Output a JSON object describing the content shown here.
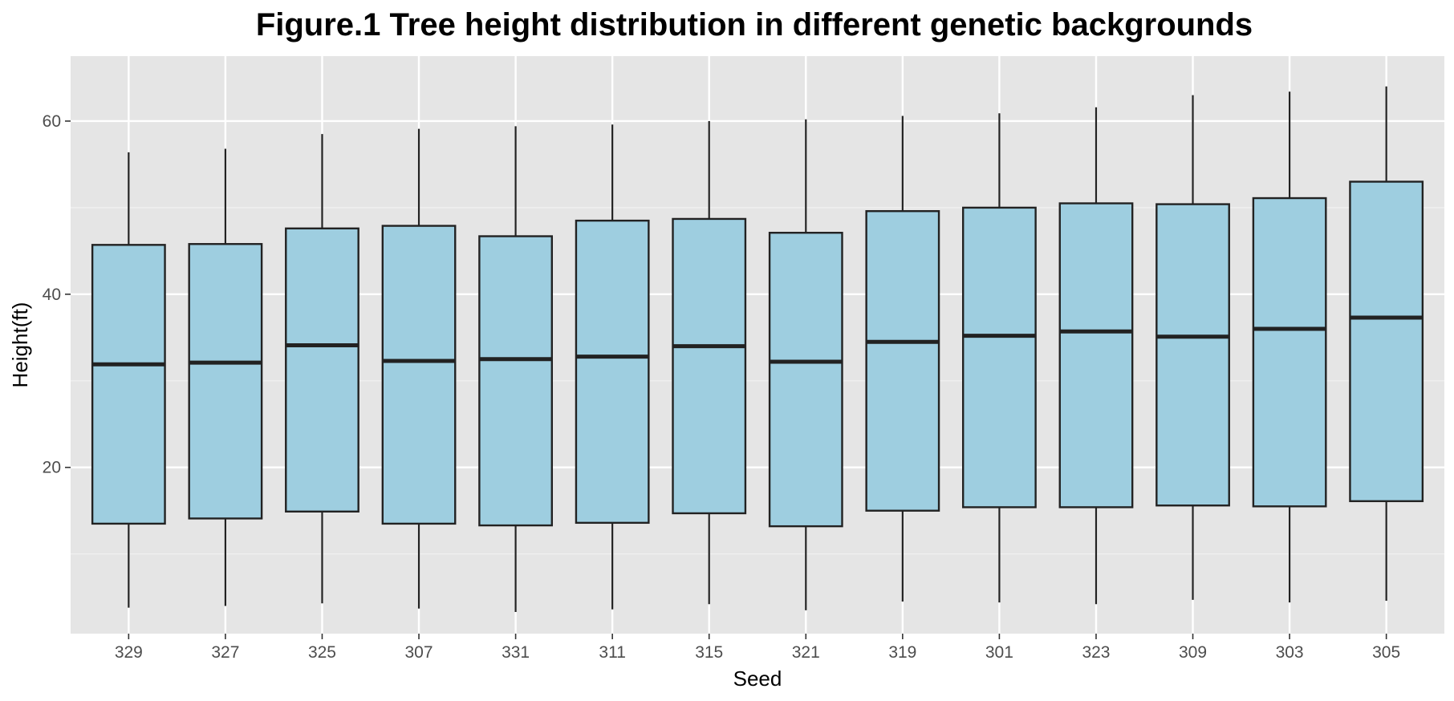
{
  "chart_data": {
    "type": "boxplot",
    "title": "Figure.1 Tree height distribution in different genetic backgrounds",
    "xlabel": "Seed",
    "ylabel": "Height(ft)",
    "categories": [
      "329",
      "327",
      "325",
      "307",
      "331",
      "311",
      "315",
      "321",
      "319",
      "301",
      "323",
      "309",
      "303",
      "305"
    ],
    "boxes": [
      {
        "category": "329",
        "min": 3.8,
        "q1": 13.5,
        "median": 31.9,
        "q3": 45.7,
        "max": 56.4
      },
      {
        "category": "327",
        "min": 4.0,
        "q1": 14.1,
        "median": 32.1,
        "q3": 45.8,
        "max": 56.8
      },
      {
        "category": "325",
        "min": 4.3,
        "q1": 14.9,
        "median": 34.1,
        "q3": 47.6,
        "max": 58.5
      },
      {
        "category": "307",
        "min": 3.7,
        "q1": 13.5,
        "median": 32.3,
        "q3": 47.9,
        "max": 59.1
      },
      {
        "category": "331",
        "min": 3.3,
        "q1": 13.3,
        "median": 32.5,
        "q3": 46.7,
        "max": 59.4
      },
      {
        "category": "311",
        "min": 3.6,
        "q1": 13.6,
        "median": 32.8,
        "q3": 48.5,
        "max": 59.6
      },
      {
        "category": "315",
        "min": 4.2,
        "q1": 14.7,
        "median": 34.0,
        "q3": 48.7,
        "max": 60.0
      },
      {
        "category": "321",
        "min": 3.5,
        "q1": 13.2,
        "median": 32.2,
        "q3": 47.1,
        "max": 60.2
      },
      {
        "category": "319",
        "min": 4.5,
        "q1": 15.0,
        "median": 34.5,
        "q3": 49.6,
        "max": 60.6
      },
      {
        "category": "301",
        "min": 4.4,
        "q1": 15.4,
        "median": 35.2,
        "q3": 50.0,
        "max": 60.9
      },
      {
        "category": "323",
        "min": 4.2,
        "q1": 15.4,
        "median": 35.7,
        "q3": 50.5,
        "max": 61.6
      },
      {
        "category": "309",
        "min": 4.7,
        "q1": 15.6,
        "median": 35.1,
        "q3": 50.4,
        "max": 63.0
      },
      {
        "category": "303",
        "min": 4.4,
        "q1": 15.5,
        "median": 36.0,
        "q3": 51.1,
        "max": 63.4
      },
      {
        "category": "305",
        "min": 4.6,
        "q1": 16.1,
        "median": 37.3,
        "q3": 53.0,
        "max": 64.0
      }
    ],
    "ylim": [
      0.8,
      67.5
    ],
    "yticks": [
      20,
      40,
      60
    ],
    "ytick_labels": [
      "20",
      "40",
      "60"
    ],
    "grid": true,
    "colors": {
      "box_fill": "#9ecee0",
      "box_stroke": "#222222",
      "panel_bg": "#e5e5e5",
      "grid_major": "#ffffff",
      "grid_minor": "#f2f2f2"
    }
  }
}
